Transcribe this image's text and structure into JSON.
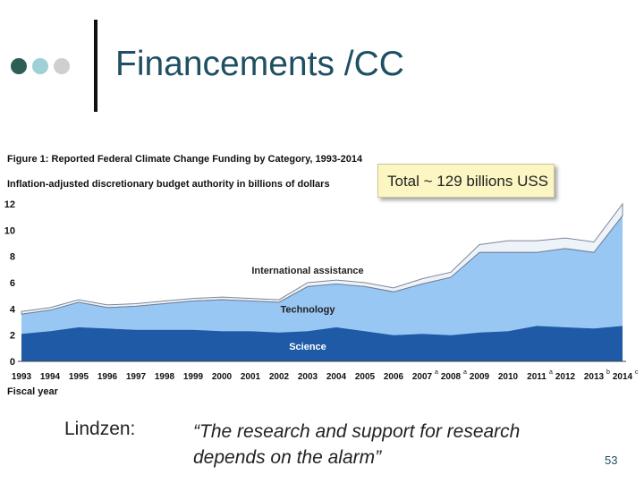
{
  "slide": {
    "title": "Financements /CC",
    "dot_colors": [
      "#2e5f57",
      "#9fd0d6",
      "#cfcfcf"
    ],
    "footer_label": "Lindzen:",
    "quote_line1": "“The research and support for research",
    "quote_line2": "depends on the alarm”",
    "page_number": "53",
    "callout": "Total ~ 129 billions USS"
  },
  "chart_data": {
    "type": "area",
    "title": "Figure 1: Reported Federal Climate Change Funding by Category, 1993-2014",
    "subtitle": "Inflation-adjusted discretionary budget authority in billions of dollars",
    "xlabel": "Fiscal year",
    "ylabel": "",
    "ylim": [
      0,
      12
    ],
    "yticks": [
      "0",
      "2",
      "4",
      "6",
      "8",
      "10",
      "12"
    ],
    "categories": [
      "1993",
      "1994",
      "1995",
      "1996",
      "1997",
      "1998",
      "1999",
      "2000",
      "2001",
      "2002",
      "2003",
      "2004",
      "2005",
      "2006",
      "2007",
      "2008",
      "2009",
      "2010",
      "2011",
      "2012",
      "2013",
      "2014"
    ],
    "category_superscripts": {
      "2007": "a",
      "2008": "a",
      "2011": "a",
      "2013": "b",
      "2014": "c"
    },
    "stacking": "stacked",
    "series": [
      {
        "name": "Science",
        "color": "#1e5aa6",
        "values": [
          2.1,
          2.3,
          2.6,
          2.5,
          2.4,
          2.4,
          2.4,
          2.3,
          2.3,
          2.2,
          2.3,
          2.6,
          2.3,
          2.0,
          2.1,
          2.0,
          2.2,
          2.3,
          2.7,
          2.6,
          2.5,
          2.7
        ]
      },
      {
        "name": "Technology",
        "color": "#99c7f4",
        "values": [
          1.5,
          1.6,
          1.9,
          1.6,
          1.8,
          2.0,
          2.2,
          2.4,
          2.3,
          2.3,
          3.4,
          3.3,
          3.4,
          3.3,
          3.8,
          4.4,
          6.1,
          6.0,
          5.6,
          6.0,
          5.8,
          8.4
        ]
      },
      {
        "name": "International assistance",
        "color": "#eef3fa",
        "values": [
          0.2,
          0.2,
          0.2,
          0.2,
          0.2,
          0.2,
          0.2,
          0.2,
          0.2,
          0.2,
          0.3,
          0.3,
          0.3,
          0.3,
          0.4,
          0.4,
          0.6,
          0.9,
          0.9,
          0.8,
          0.8,
          0.9
        ]
      }
    ],
    "series_label_positions": {
      "International assistance": "above",
      "Technology": "inside",
      "Science": "inside"
    },
    "grid": false,
    "legend": "inline-labels"
  }
}
